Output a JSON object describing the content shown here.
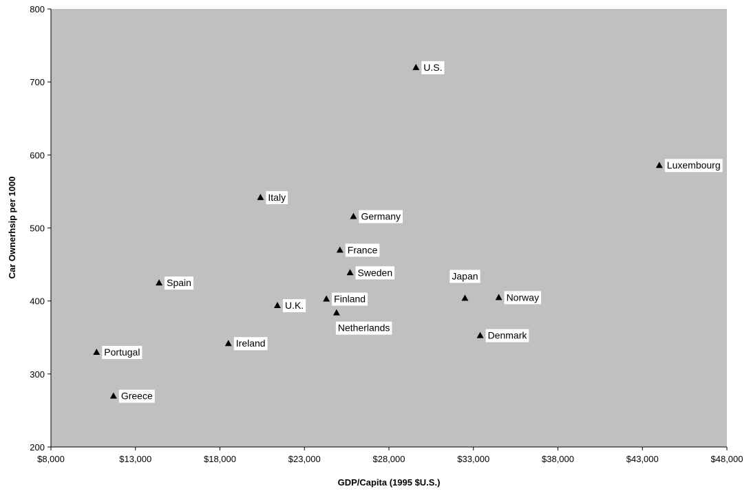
{
  "chart_data": {
    "type": "scatter",
    "title": "",
    "xlabel": "GDP/Capita (1995 $U.S.)",
    "ylabel": "Car Ownerhsip per 1000",
    "xlim": [
      8000,
      48000
    ],
    "ylim": [
      200,
      800
    ],
    "x_ticks": [
      8000,
      13000,
      18000,
      23000,
      28000,
      33000,
      38000,
      43000,
      48000
    ],
    "x_tick_labels": [
      "$8,000",
      "$13,000",
      "$18,000",
      "$23,000",
      "$28,000",
      "$33,000",
      "$38,000",
      "$43,000",
      "$48,000"
    ],
    "y_ticks": [
      200,
      300,
      400,
      500,
      600,
      700,
      800
    ],
    "y_tick_labels": [
      "200",
      "300",
      "400",
      "500",
      "600",
      "700",
      "800"
    ],
    "grid": false,
    "marker": "triangle",
    "colors": {
      "plot_background": "#c0c0c0",
      "marker": "#000000",
      "label_background": "#ffffff"
    },
    "points": [
      {
        "label": "U.S.",
        "x": 29600,
        "y": 720,
        "label_pos": "right"
      },
      {
        "label": "Luxembourg",
        "x": 44000,
        "y": 586,
        "label_pos": "right"
      },
      {
        "label": "Italy",
        "x": 20400,
        "y": 542,
        "label_pos": "right"
      },
      {
        "label": "Germany",
        "x": 25900,
        "y": 516,
        "label_pos": "right"
      },
      {
        "label": "France",
        "x": 25100,
        "y": 470,
        "label_pos": "right"
      },
      {
        "label": "Sweden",
        "x": 25700,
        "y": 439,
        "label_pos": "right"
      },
      {
        "label": "Spain",
        "x": 14400,
        "y": 425,
        "label_pos": "right"
      },
      {
        "label": "Japan",
        "x": 32500,
        "y": 404,
        "label_pos": "above"
      },
      {
        "label": "Norway",
        "x": 34500,
        "y": 405,
        "label_pos": "right"
      },
      {
        "label": "Finland",
        "x": 24300,
        "y": 403,
        "label_pos": "right"
      },
      {
        "label": "U.K.",
        "x": 21400,
        "y": 394,
        "label_pos": "right"
      },
      {
        "label": "Netherlands",
        "x": 24900,
        "y": 384,
        "label_pos": "below"
      },
      {
        "label": "Denmark",
        "x": 33400,
        "y": 353,
        "label_pos": "right"
      },
      {
        "label": "Ireland",
        "x": 18500,
        "y": 342,
        "label_pos": "right"
      },
      {
        "label": "Portugal",
        "x": 10700,
        "y": 330,
        "label_pos": "right"
      },
      {
        "label": "Greece",
        "x": 11700,
        "y": 270,
        "label_pos": "right"
      }
    ]
  }
}
